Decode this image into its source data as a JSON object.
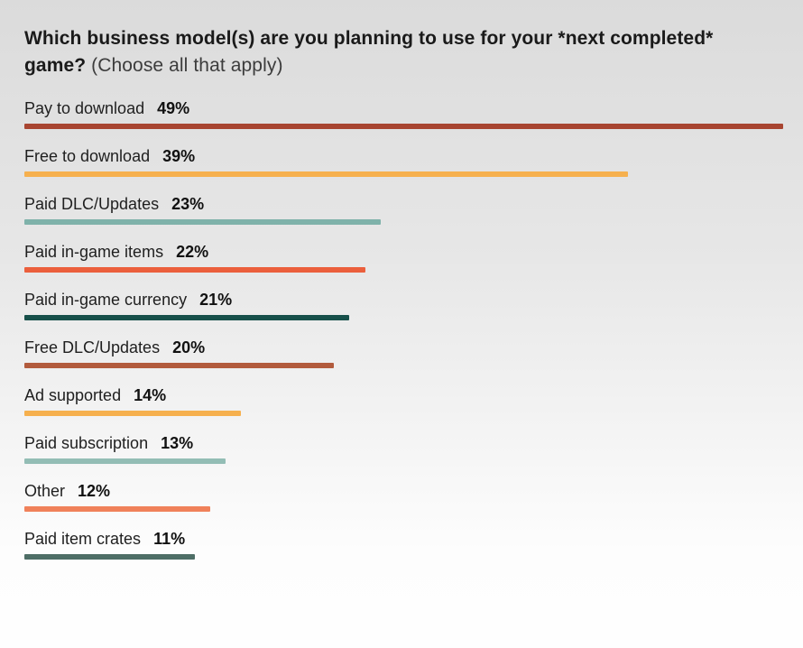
{
  "title": {
    "question_bold": "Which business model(s) are you planning to use for your *next completed* game?",
    "question_normal": " (Choose all that apply)"
  },
  "chart_data": {
    "type": "bar",
    "orientation": "horizontal",
    "title": "Which business model(s) are you planning to use for your *next completed* game? (Choose all that apply)",
    "categories": [
      "Pay to download",
      "Free to download",
      "Paid DLC/Updates",
      "Paid in-game items",
      "Paid in-game currency",
      "Free DLC/Updates",
      "Ad supported",
      "Paid subscription",
      "Other",
      "Paid item crates"
    ],
    "values": [
      49,
      39,
      23,
      22,
      21,
      20,
      14,
      13,
      12,
      11
    ],
    "value_suffix": "%",
    "max_value_scale": 49,
    "bar_colors": [
      "#a84531",
      "#f6b04e",
      "#7fb2aa",
      "#eb5f3c",
      "#17504a",
      "#b25b3d",
      "#f6b04e",
      "#93bdb5",
      "#f0815a",
      "#4e6e66"
    ],
    "legend": "none",
    "grid": false,
    "axis_labels": "none"
  },
  "colors": {
    "background_top": "#dbdbdb",
    "background_bottom": "#fefefe",
    "title_text": "#1a1a1a",
    "label_text": "#1f1f1f"
  }
}
